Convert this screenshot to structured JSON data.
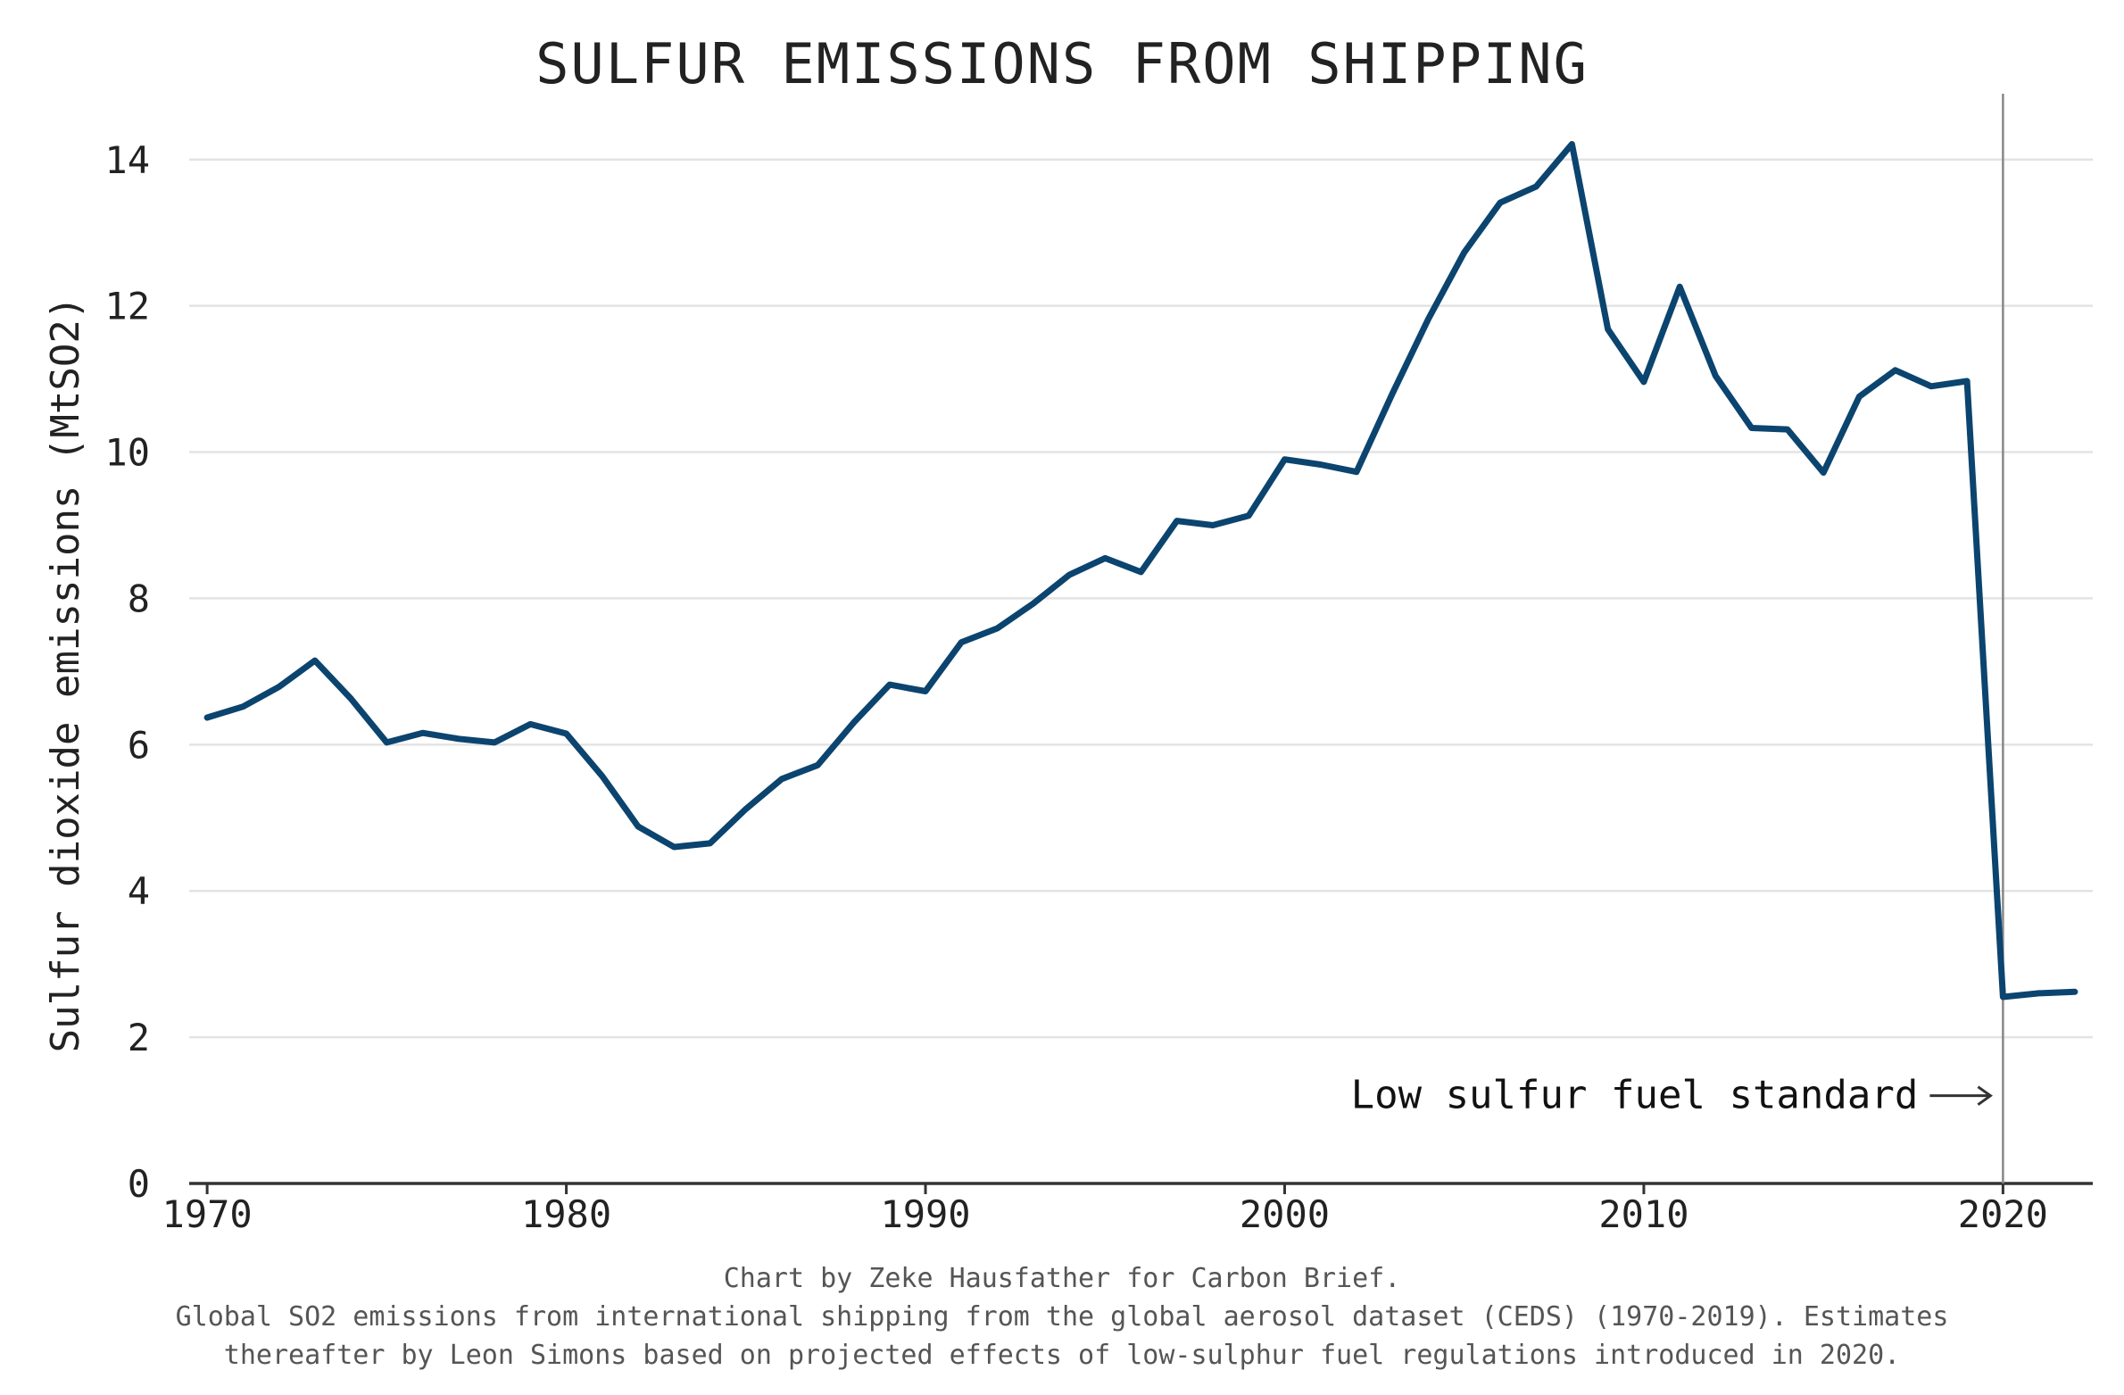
{
  "chart_data": {
    "type": "line",
    "title": "SULFUR EMISSIONS FROM SHIPPING",
    "ylabel": "Sulfur dioxide emissions (MtSO2)",
    "xlabel": "",
    "xlim": [
      1969.5,
      2022.5
    ],
    "ylim": [
      0,
      14.9
    ],
    "yticks": [
      0,
      2,
      4,
      6,
      8,
      10,
      12,
      14
    ],
    "xticks": [
      1970,
      1980,
      1990,
      2000,
      2010,
      2020
    ],
    "grid": "horizontal",
    "line_color": "#0b446f",
    "x": [
      1970,
      1971,
      1972,
      1973,
      1974,
      1975,
      1976,
      1977,
      1978,
      1979,
      1980,
      1981,
      1982,
      1983,
      1984,
      1985,
      1986,
      1987,
      1988,
      1989,
      1990,
      1991,
      1992,
      1993,
      1994,
      1995,
      1996,
      1997,
      1998,
      1999,
      2000,
      2001,
      2002,
      2003,
      2004,
      2005,
      2006,
      2007,
      2008,
      2009,
      2010,
      2011,
      2012,
      2013,
      2014,
      2015,
      2016,
      2017,
      2018,
      2019,
      2020,
      2021,
      2022
    ],
    "series": [
      {
        "values": [
          6.37,
          6.52,
          6.79,
          7.15,
          6.63,
          6.03,
          6.16,
          6.08,
          6.03,
          6.28,
          6.15,
          5.57,
          4.88,
          4.6,
          4.65,
          5.12,
          5.53,
          5.72,
          6.3,
          6.82,
          6.73,
          7.4,
          7.59,
          7.93,
          8.32,
          8.55,
          8.36,
          9.06,
          9.0,
          9.13,
          9.9,
          9.83,
          9.73,
          10.8,
          11.82,
          12.73,
          13.41,
          13.63,
          14.21,
          11.68,
          10.96,
          12.26,
          11.04,
          10.33,
          10.31,
          9.72,
          10.76,
          11.12,
          10.9,
          10.97,
          2.55,
          2.6,
          2.62
        ]
      }
    ],
    "annotation": {
      "text": "Low sulfur fuel standard",
      "x": 2020,
      "y": 1.2
    },
    "vline_x": 2020
  },
  "caption": {
    "line1": "Chart by Zeke Hausfather for Carbon Brief.",
    "line2": "Global SO2 emissions from international shipping from the global aerosol dataset (CEDS) (1970-2019). Estimates",
    "line3": "thereafter by Leon Simons based on projected effects of low-sulphur fuel regulations introduced in 2020."
  }
}
